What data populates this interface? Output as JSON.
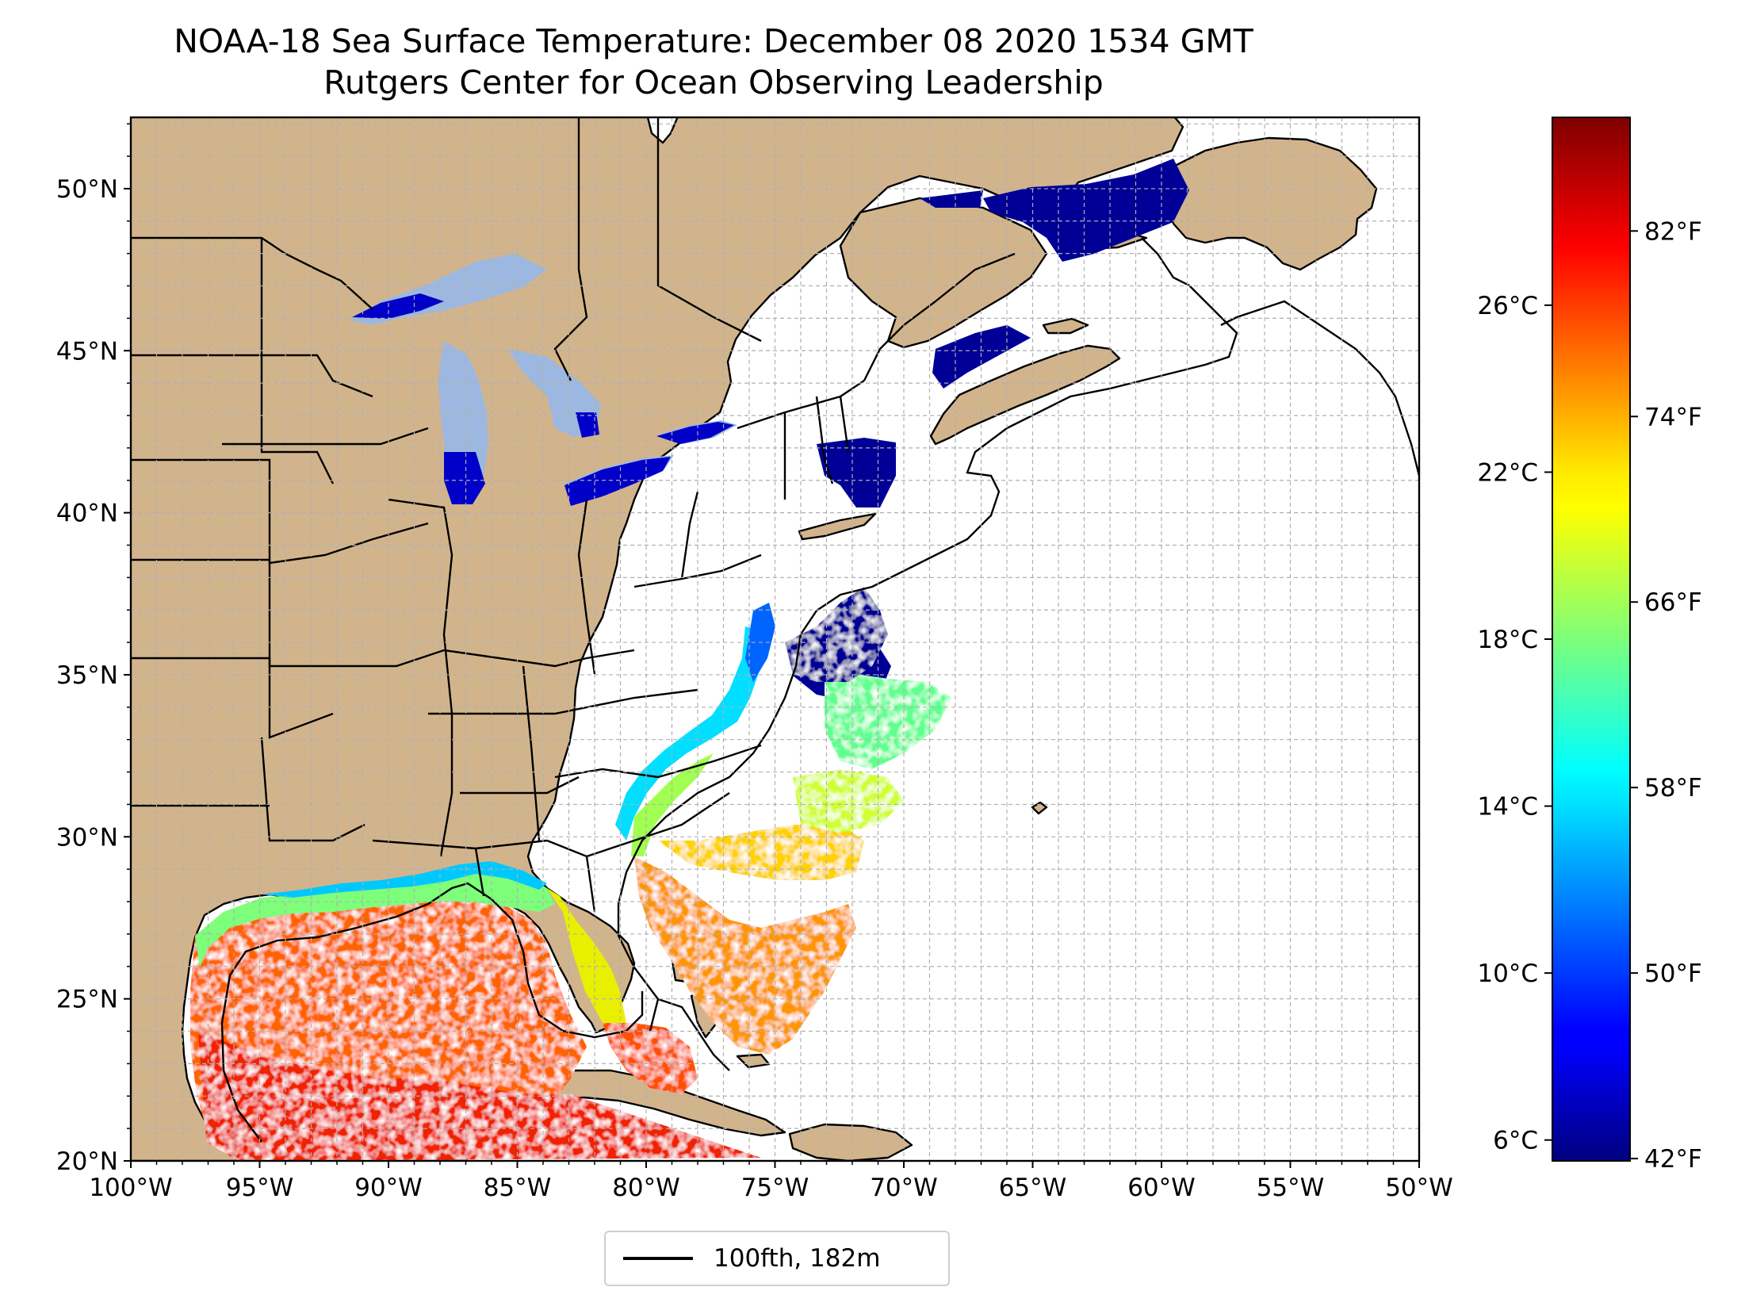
{
  "title": "NOAA-18 Sea Surface Temperature: December 08 2020 1534 GMT",
  "subtitle": "Rutgers Center for Ocean Observing Leadership",
  "map": {
    "projection": "equirectangular",
    "lon_range": [
      -100,
      -50
    ],
    "lat_range": [
      20,
      52.2
    ],
    "lon_ticks": [
      "100°W",
      "95°W",
      "90°W",
      "85°W",
      "80°W",
      "75°W",
      "70°W",
      "65°W",
      "60°W",
      "55°W",
      "50°W"
    ],
    "lat_ticks": [
      "20°N",
      "25°N",
      "30°N",
      "35°N",
      "40°N",
      "45°N",
      "50°N"
    ],
    "grid": true,
    "land_color": "#d2b48c",
    "lake_color": "#9db8e0",
    "features": [
      "coastlines",
      "state-borders",
      "country-borders",
      "100fth-isobath",
      "sst-swath"
    ]
  },
  "colorbar": {
    "colormap": "jet",
    "celsius_ticks": [
      "6°C",
      "10°C",
      "14°C",
      "18°C",
      "22°C",
      "26°C"
    ],
    "fahrenheit_ticks": [
      "42°F",
      "50°F",
      "58°F",
      "66°F",
      "74°F",
      "82°F"
    ],
    "range_c": [
      5.5,
      30.5
    ]
  },
  "legend": {
    "label": "100fth, 182m",
    "line_color": "#000000",
    "placement": "bottom-center"
  }
}
